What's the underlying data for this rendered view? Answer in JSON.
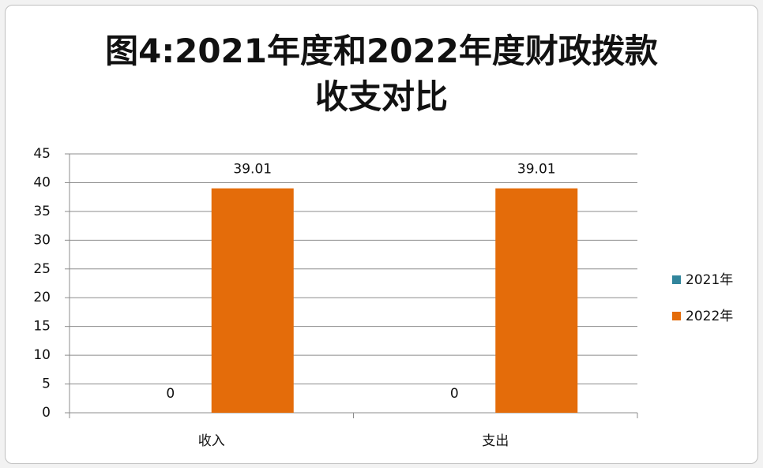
{
  "chart_data": {
    "type": "bar",
    "title": "图4:2021年度和2022年度财政拨款收支对比",
    "categories": [
      "收入",
      "支出"
    ],
    "series": [
      {
        "name": "2021年",
        "color": "#31859c",
        "values": [
          0,
          0
        ]
      },
      {
        "name": "2022年",
        "color": "#e46c0a",
        "values": [
          39.01,
          39.01
        ]
      }
    ],
    "ylim": [
      0,
      45
    ],
    "yticks": [
      0,
      5,
      10,
      15,
      20,
      25,
      30,
      35,
      40,
      45
    ],
    "grid": true,
    "legend": "right"
  }
}
